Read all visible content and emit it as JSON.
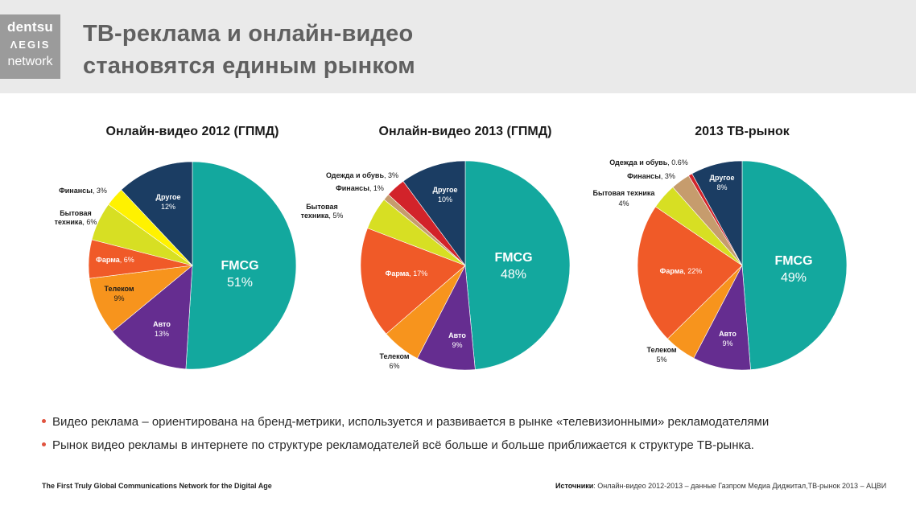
{
  "header": {
    "logo": {
      "line1": "dentsu",
      "line2": "ΛEGIS",
      "line3": "network"
    },
    "title_line1": "ТВ-реклама и онлайн-видео",
    "title_line2": "становятся единым рынком"
  },
  "colors": {
    "FMCG": "#13a89e",
    "Авто": "#652d90",
    "Телеком": "#f7941d",
    "Фарма": "#f05a28",
    "Бытовая техника": "#d7df23",
    "Финансы_2012": "#fff200",
    "Финансы": "#c69c6d",
    "Одежда и обувь": "#d2232a",
    "Другое": "#1b3d63",
    "bullet": "#e0533f"
  },
  "chart_data": [
    {
      "type": "pie",
      "title": "Онлайн-видео 2012 (ГПМД)",
      "slices": [
        {
          "label": "FMCG",
          "value": 51,
          "text": "51%"
        },
        {
          "label": "Авто",
          "value": 13,
          "text": "13%"
        },
        {
          "label": "Телеком",
          "value": 9,
          "text": "9%"
        },
        {
          "label": "Фарма",
          "value": 6,
          "text": "6%"
        },
        {
          "label": "Бытовая техника",
          "value": 6,
          "text": "6%"
        },
        {
          "label": "Финансы",
          "value": 3,
          "text": "3%"
        },
        {
          "label": "Другое",
          "value": 12,
          "text": "12%"
        }
      ]
    },
    {
      "type": "pie",
      "title": "Онлайн-видео 2013 (ГПМД)",
      "slices": [
        {
          "label": "FMCG",
          "value": 48,
          "text": "48%"
        },
        {
          "label": "Авто",
          "value": 9,
          "text": "9%"
        },
        {
          "label": "Телеком",
          "value": 6,
          "text": "6%"
        },
        {
          "label": "Фарма",
          "value": 17,
          "text": "17%"
        },
        {
          "label": "Бытовая техника",
          "value": 5,
          "text": "5%"
        },
        {
          "label": "Финансы",
          "value": 1,
          "text": "1%"
        },
        {
          "label": "Одежда и обувь",
          "value": 3,
          "text": "3%"
        },
        {
          "label": "Другое",
          "value": 10,
          "text": "10%"
        }
      ]
    },
    {
      "type": "pie",
      "title": "2013 ТВ-рынок",
      "slices": [
        {
          "label": "FMCG",
          "value": 49,
          "text": "49%"
        },
        {
          "label": "Авто",
          "value": 9,
          "text": "9%"
        },
        {
          "label": "Телеком",
          "value": 5,
          "text": "5%"
        },
        {
          "label": "Фарма",
          "value": 22,
          "text": "22%"
        },
        {
          "label": "Бытовая техника",
          "value": 4,
          "text": "4%"
        },
        {
          "label": "Финансы",
          "value": 3,
          "text": "3%"
        },
        {
          "label": "Одежда и обувь",
          "value": 0.6,
          "text": "0.6%"
        },
        {
          "label": "Другое",
          "value": 8,
          "text": "8%"
        }
      ]
    }
  ],
  "bullets": [
    "Видео реклама – ориентирована на бренд-метрики, используется и развивается в рынке «телевизионными» рекламодателями",
    "Рынок видео рекламы в интернете по структуре рекламодателей всё больше и больше приближается к структуре ТВ-рынка."
  ],
  "footer": {
    "tagline": "The First Truly Global Communications Network for the Digital Age",
    "sources_label": "Источники",
    "sources_text": ": Онлайн-видео 2012-2013 – данные Газпром Медиа Диджитал,ТВ-рынок 2013 – АЦВИ"
  }
}
